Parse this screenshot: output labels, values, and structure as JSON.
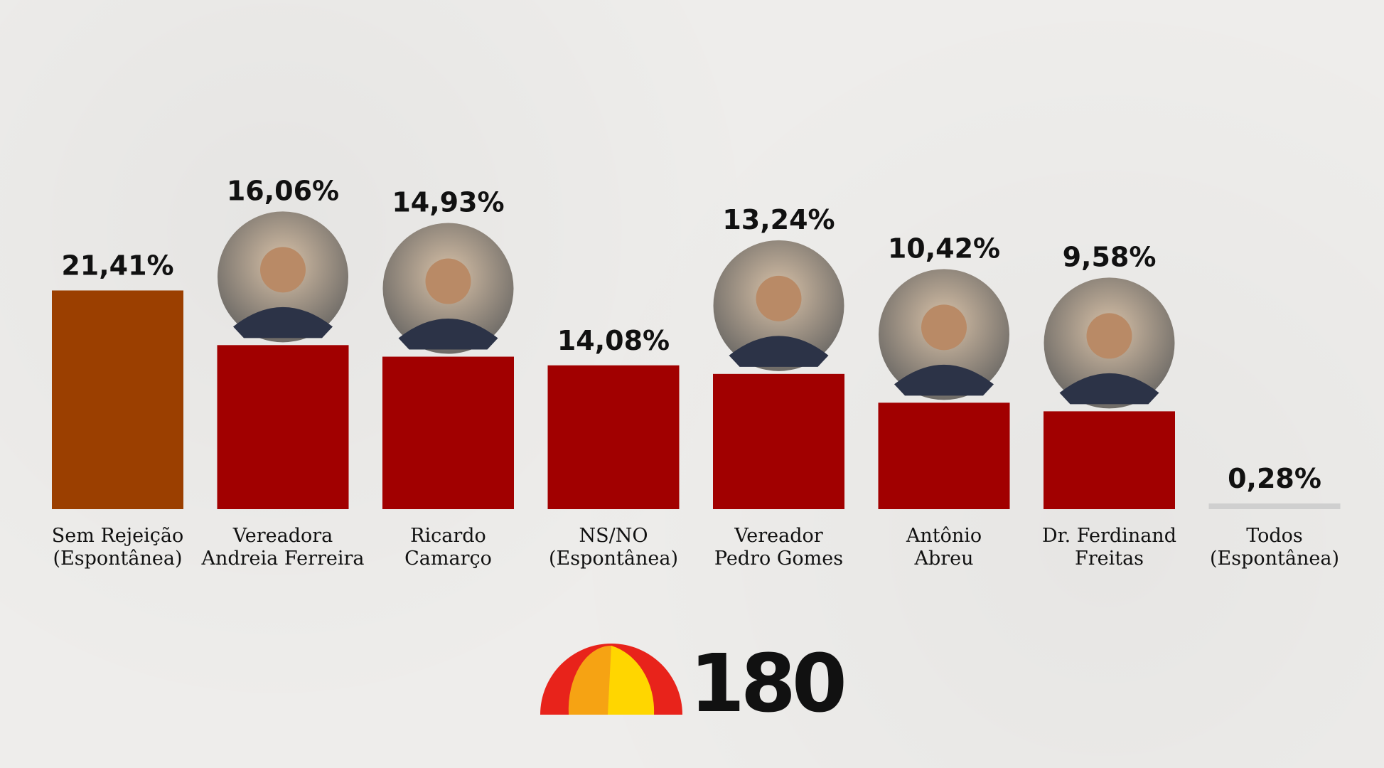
{
  "chart_data": {
    "type": "bar",
    "categories": [
      [
        "Sem Rejeição",
        "(Espontânea)"
      ],
      [
        "Vereadora",
        "Andreia Ferreira"
      ],
      [
        "Ricardo",
        "Camarço"
      ],
      [
        "NS/NO",
        "(Espontânea)"
      ],
      [
        "Vereador",
        "Pedro Gomes"
      ],
      [
        "Antônio",
        "Abreu"
      ],
      [
        "Dr. Ferdinand",
        "Freitas"
      ],
      [
        "Todos",
        "(Espontânea)"
      ]
    ],
    "values": [
      21.41,
      16.06,
      14.93,
      14.08,
      13.24,
      10.42,
      9.58,
      0.28
    ],
    "value_labels": [
      "21,41%",
      "16,06%",
      "14,93%",
      "14,08%",
      "13,24%",
      "10,42%",
      "9,58%",
      "0,28%"
    ],
    "colors": [
      "#9b3f00",
      "#a10000",
      "#a10000",
      "#a10000",
      "#a10000",
      "#a10000",
      "#a10000",
      "#cfcfcf"
    ],
    "has_photo": [
      false,
      true,
      true,
      false,
      true,
      true,
      true,
      false
    ],
    "ylim": [
      0,
      22
    ]
  },
  "logo": {
    "text": "180",
    "colors": [
      "#e8231b",
      "#f6a313",
      "#ffd600"
    ]
  }
}
